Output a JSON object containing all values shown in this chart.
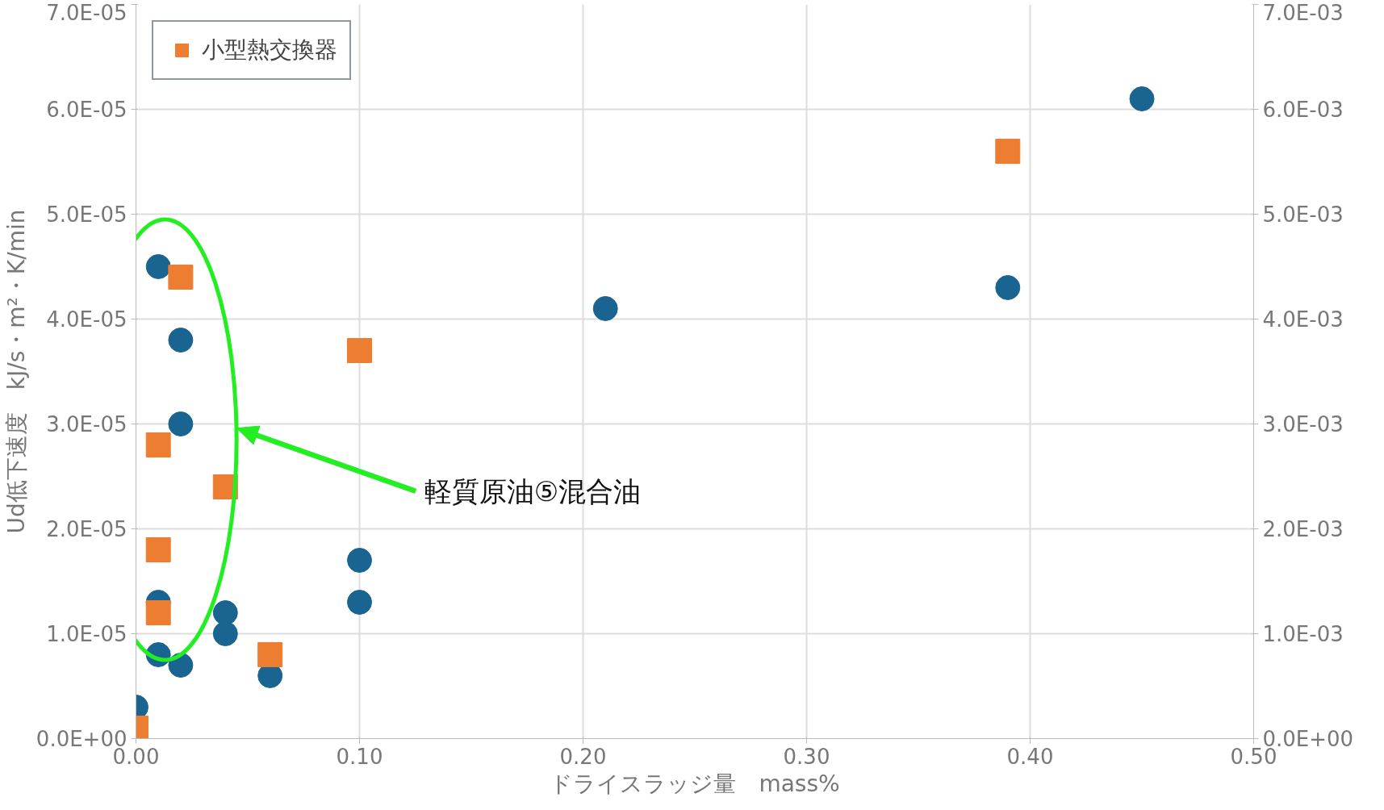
{
  "chart_data": {
    "type": "scatter",
    "xlabel": "ドライスラッジ量　mass%",
    "ylabel": "Ud低下速度　kJ/s・m²・K/min",
    "xlim": [
      0,
      0.5
    ],
    "ylim": [
      0,
      7e-05
    ],
    "y2lim": [
      0,
      0.007
    ],
    "xticks": [
      {
        "value": 0,
        "label": "0.00"
      },
      {
        "value": 0.1,
        "label": "0.10"
      },
      {
        "value": 0.2,
        "label": "0.20"
      },
      {
        "value": 0.3,
        "label": "0.30"
      },
      {
        "value": 0.4,
        "label": "0.40"
      },
      {
        "value": 0.5,
        "label": "0.50"
      }
    ],
    "yticks": [
      {
        "value": 0,
        "label": "0.0E+00"
      },
      {
        "value": 1e-05,
        "label": "1.0E-05"
      },
      {
        "value": 2e-05,
        "label": "2.0E-05"
      },
      {
        "value": 3e-05,
        "label": "3.0E-05"
      },
      {
        "value": 4e-05,
        "label": "4.0E-05"
      },
      {
        "value": 5e-05,
        "label": "5.0E-05"
      },
      {
        "value": 6e-05,
        "label": "6.0E-05"
      },
      {
        "value": 7e-05,
        "label": "7.0E-05"
      }
    ],
    "y2ticks": [
      {
        "value": 0,
        "label": "0.0E+00"
      },
      {
        "value": 0.001,
        "label": "1.0E-03"
      },
      {
        "value": 0.002,
        "label": "2.0E-03"
      },
      {
        "value": 0.003,
        "label": "3.0E-03"
      },
      {
        "value": 0.004,
        "label": "4.0E-03"
      },
      {
        "value": 0.005,
        "label": "5.0E-03"
      },
      {
        "value": 0.006,
        "label": "6.0E-03"
      },
      {
        "value": 0.007,
        "label": "7.0E-03"
      }
    ],
    "grid": true,
    "legend": "top left",
    "series": [
      {
        "color": "#1a6491",
        "marker": "circle",
        "x": [
          0,
          0.01,
          0.02,
          0.02,
          0.01,
          0.01,
          0.02,
          0.04,
          0.04,
          0.06,
          0.1,
          0.1,
          0.21,
          0.39,
          0.45
        ],
        "values": [
          3e-06,
          4.5e-05,
          3.8e-05,
          3e-05,
          1.3e-05,
          8e-06,
          7e-06,
          1.2e-05,
          1e-05,
          6e-06,
          1.7e-05,
          1.3e-05,
          4.1e-05,
          4.3e-05,
          6.1e-05
        ]
      },
      {
        "name": "小型熱交換器",
        "color": "#ed7d31",
        "marker": "square",
        "axis": "y2",
        "x": [
          0,
          0.02,
          0.01,
          0.01,
          0.01,
          0.04,
          0.06,
          0.1,
          0.39
        ],
        "values": [
          0.0001,
          0.0044,
          0.0028,
          0.0018,
          0.0012,
          0.0024,
          0.0008,
          0.0037,
          0.0056
        ]
      }
    ],
    "annotations": [
      "軽質原油⑤混合油"
    ]
  }
}
